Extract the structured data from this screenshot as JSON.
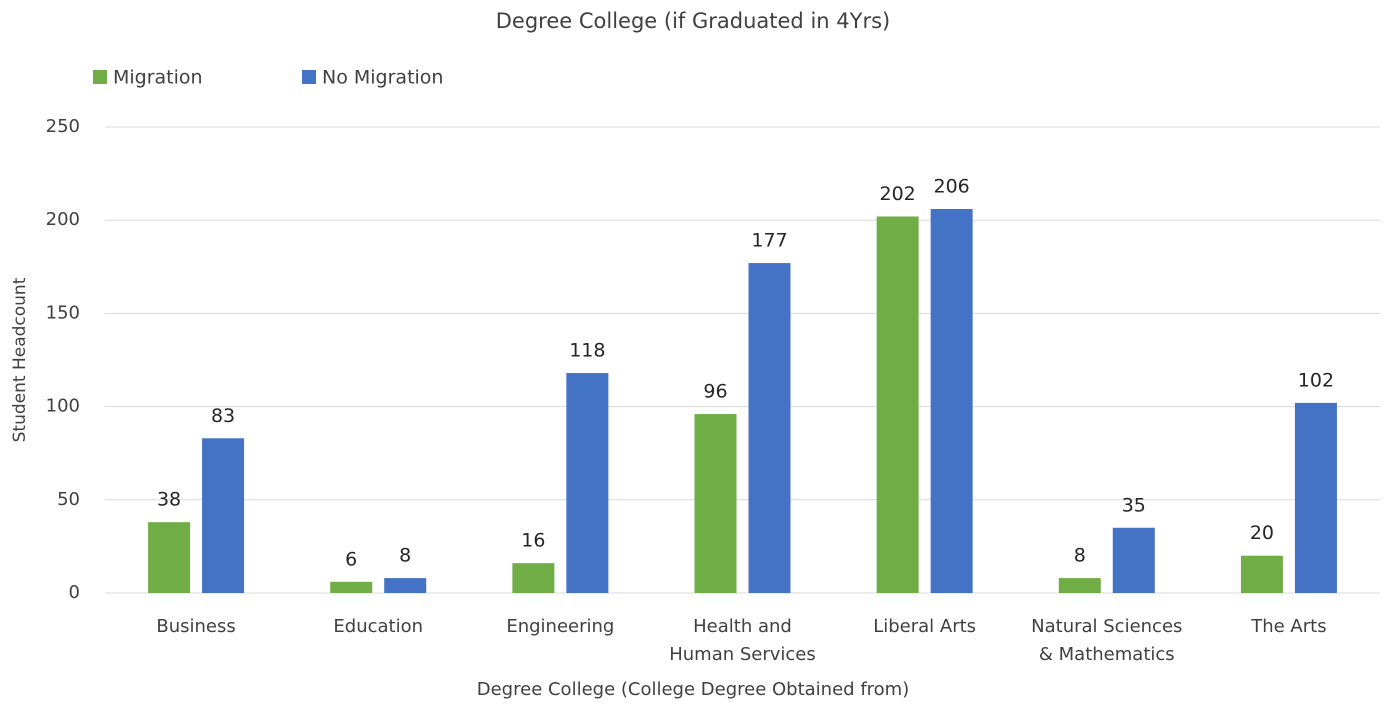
{
  "chart_data": {
    "type": "bar",
    "title": "Degree College (if Graduated in 4Yrs)",
    "x_label": "Degree College (College Degree Obtained from)",
    "y_label": "Student Headcount",
    "categories": [
      "Business",
      "Education",
      "Engineering",
      "Health and Human Services",
      "Liberal Arts",
      "Natural Sciences & Mathematics",
      "The Arts"
    ],
    "series": [
      {
        "name": "Migration",
        "color": "#70ad47",
        "values": [
          38,
          6,
          16,
          96,
          202,
          8,
          20
        ]
      },
      {
        "name": "No Migration",
        "color": "#4472c4",
        "values": [
          83,
          8,
          118,
          177,
          206,
          35,
          102
        ]
      }
    ],
    "ylim": [
      0,
      250
    ],
    "yticks": [
      0,
      50,
      100,
      150,
      200,
      250
    ],
    "grid": true,
    "legend": "top-left"
  }
}
